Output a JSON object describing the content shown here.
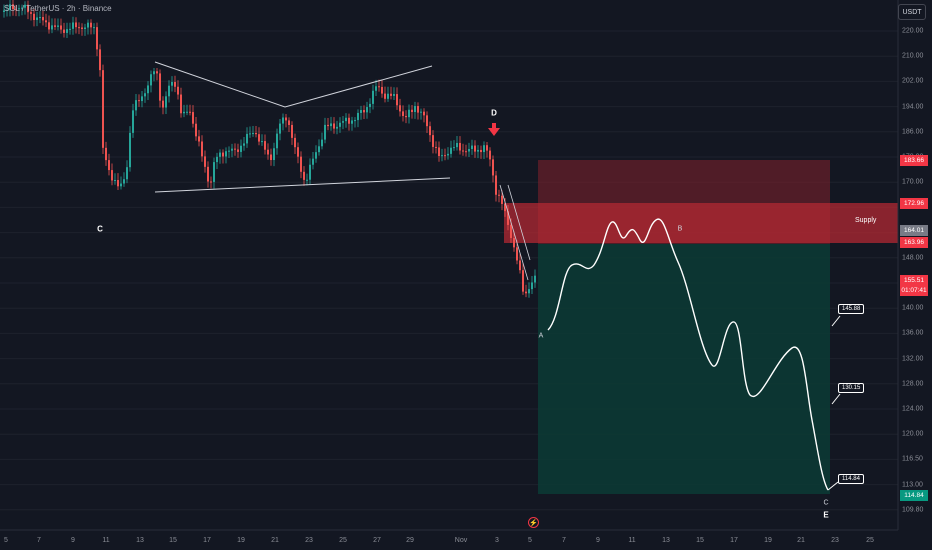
{
  "header": {
    "symbol_line": "SOL / TetherUS · 2h · Binance"
  },
  "currency_button": "USDT",
  "y_axis": {
    "ticks": [
      "220.00",
      "210.00",
      "202.00",
      "194.00",
      "186.00",
      "178.00",
      "170.00",
      "160.00",
      "152.00",
      "148.00",
      "144.00",
      "140.00",
      "136.00",
      "132.00",
      "128.00",
      "124.00",
      "120.00",
      "116.50",
      "113.00",
      "109.80"
    ]
  },
  "x_axis": {
    "ticks": [
      "5",
      "7",
      "9",
      "11",
      "13",
      "15",
      "17",
      "19",
      "21",
      "23",
      "25",
      "27",
      "29",
      "Nov",
      "3",
      "5",
      "7",
      "9",
      "11",
      "13",
      "15",
      "17",
      "19",
      "21",
      "23",
      "25"
    ]
  },
  "price_labels": [
    {
      "text": "183.66",
      "color": "#f23645"
    },
    {
      "text": "172.96",
      "color": "#f23645"
    },
    {
      "text": "164.01",
      "color": "#787b86"
    },
    {
      "text": "163.96",
      "color": "#f23645"
    },
    {
      "text": "155.51",
      "color": "#f23645"
    },
    {
      "text": "01:07:41",
      "color": "#f23645"
    },
    {
      "text": "114.84",
      "color": "#089981"
    }
  ],
  "annotations": {
    "wave_c_left": "C",
    "wave_d": "D",
    "wave_a": "A",
    "wave_b": "B",
    "wave_c_right": "C",
    "wave_e": "E",
    "supply": "Supply"
  },
  "callouts": [
    "145.88",
    "130.15",
    "114.84"
  ],
  "colors": {
    "background": "#131722",
    "up": "#26a69a",
    "down": "#ef5350",
    "supply_zone": "#b22833",
    "stop_zone": "#7a1f2b",
    "target_zone": "#0c3b35",
    "arrow": "#f23645"
  },
  "icons": {
    "event_icon": "lightning-icon"
  }
}
